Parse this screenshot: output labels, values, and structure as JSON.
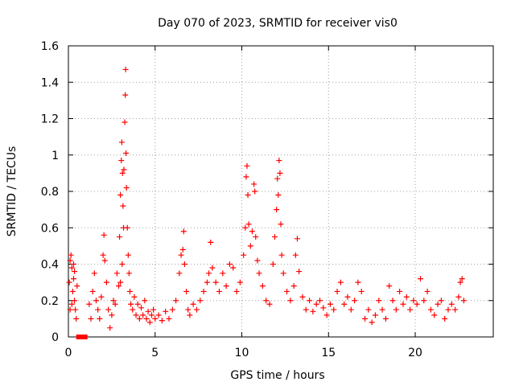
{
  "chart_data": {
    "type": "scatter",
    "title": "Day 070 of 2023, SRMTID for receiver vis0",
    "xlabel": "GPS time / hours",
    "ylabel": "SRMTID / TECUs",
    "xlim": [
      0,
      24.5
    ],
    "ylim": [
      0,
      1.6
    ],
    "xticks": [
      0,
      5,
      10,
      15,
      20
    ],
    "xtick_labels": [
      "0",
      "5",
      "10",
      "15",
      "20"
    ],
    "yticks": [
      0,
      0.2,
      0.4,
      0.6,
      0.8,
      1.0,
      1.2,
      1.4,
      1.6
    ],
    "ytick_labels": [
      "0",
      "0.2",
      "0.4",
      "0.6",
      "0.8",
      "1",
      "1.2",
      "1.4",
      "1.6"
    ],
    "grid": true,
    "marker": "plus",
    "color": "#ff0000",
    "gap_marker": {
      "x_start": 0.45,
      "x_end": 1.1,
      "y": 0.0
    },
    "series": [
      {
        "name": "SRMTID",
        "points": [
          [
            0.05,
            0.3
          ],
          [
            0.1,
            0.42
          ],
          [
            0.15,
            0.45
          ],
          [
            0.2,
            0.38
          ],
          [
            0.25,
            0.25
          ],
          [
            0.3,
            0.4
          ],
          [
            0.35,
            0.2
          ],
          [
            0.4,
            0.15
          ],
          [
            0.45,
            0.1
          ],
          [
            0.5,
            0.28
          ],
          [
            0.1,
            0.15
          ],
          [
            0.2,
            0.18
          ],
          [
            0.3,
            0.32
          ],
          [
            0.35,
            0.36
          ],
          [
            1.2,
            0.18
          ],
          [
            1.3,
            0.1
          ],
          [
            1.4,
            0.25
          ],
          [
            1.5,
            0.35
          ],
          [
            1.6,
            0.2
          ],
          [
            1.7,
            0.15
          ],
          [
            1.8,
            0.1
          ],
          [
            1.9,
            0.22
          ],
          [
            2.0,
            0.45
          ],
          [
            2.05,
            0.56
          ],
          [
            2.1,
            0.42
          ],
          [
            2.2,
            0.3
          ],
          [
            2.3,
            0.15
          ],
          [
            2.4,
            0.05
          ],
          [
            2.5,
            0.12
          ],
          [
            2.6,
            0.2
          ],
          [
            2.7,
            0.18
          ],
          [
            2.8,
            0.35
          ],
          [
            2.9,
            0.28
          ],
          [
            2.95,
            0.55
          ],
          [
            3.0,
            0.78
          ],
          [
            3.05,
            0.97
          ],
          [
            3.08,
            1.07
          ],
          [
            3.12,
            0.9
          ],
          [
            3.15,
            0.72
          ],
          [
            3.18,
            0.6
          ],
          [
            3.2,
            0.92
          ],
          [
            3.25,
            1.18
          ],
          [
            3.28,
            1.33
          ],
          [
            3.3,
            1.47
          ],
          [
            3.32,
            1.01
          ],
          [
            3.35,
            0.82
          ],
          [
            3.4,
            0.6
          ],
          [
            3.45,
            0.45
          ],
          [
            3.5,
            0.35
          ],
          [
            3.55,
            0.25
          ],
          [
            3.6,
            0.18
          ],
          [
            3.1,
            0.4
          ],
          [
            3.0,
            0.3
          ],
          [
            3.7,
            0.15
          ],
          [
            3.8,
            0.22
          ],
          [
            3.9,
            0.12
          ],
          [
            4.0,
            0.18
          ],
          [
            4.1,
            0.1
          ],
          [
            4.2,
            0.16
          ],
          [
            4.3,
            0.12
          ],
          [
            4.4,
            0.2
          ],
          [
            4.5,
            0.1
          ],
          [
            4.6,
            0.14
          ],
          [
            4.7,
            0.08
          ],
          [
            4.8,
            0.12
          ],
          [
            4.9,
            0.15
          ],
          [
            5.0,
            0.1
          ],
          [
            5.2,
            0.12
          ],
          [
            5.4,
            0.09
          ],
          [
            5.6,
            0.14
          ],
          [
            5.8,
            0.1
          ],
          [
            6.0,
            0.15
          ],
          [
            6.2,
            0.2
          ],
          [
            6.4,
            0.35
          ],
          [
            6.5,
            0.45
          ],
          [
            6.6,
            0.48
          ],
          [
            6.65,
            0.58
          ],
          [
            6.7,
            0.4
          ],
          [
            6.8,
            0.25
          ],
          [
            6.9,
            0.15
          ],
          [
            7.0,
            0.12
          ],
          [
            7.2,
            0.18
          ],
          [
            7.4,
            0.15
          ],
          [
            7.6,
            0.2
          ],
          [
            7.8,
            0.25
          ],
          [
            8.0,
            0.3
          ],
          [
            8.1,
            0.35
          ],
          [
            8.2,
            0.52
          ],
          [
            8.3,
            0.38
          ],
          [
            8.5,
            0.3
          ],
          [
            8.7,
            0.25
          ],
          [
            8.9,
            0.35
          ],
          [
            9.1,
            0.28
          ],
          [
            9.3,
            0.4
          ],
          [
            9.5,
            0.38
          ],
          [
            9.7,
            0.25
          ],
          [
            9.9,
            0.3
          ],
          [
            10.1,
            0.45
          ],
          [
            10.2,
            0.6
          ],
          [
            10.25,
            0.88
          ],
          [
            10.3,
            0.94
          ],
          [
            10.35,
            0.78
          ],
          [
            10.4,
            0.62
          ],
          [
            10.5,
            0.5
          ],
          [
            10.6,
            0.58
          ],
          [
            10.7,
            0.84
          ],
          [
            10.75,
            0.8
          ],
          [
            10.8,
            0.55
          ],
          [
            10.9,
            0.42
          ],
          [
            11.0,
            0.35
          ],
          [
            11.2,
            0.28
          ],
          [
            11.4,
            0.2
          ],
          [
            11.6,
            0.18
          ],
          [
            11.8,
            0.4
          ],
          [
            11.9,
            0.55
          ],
          [
            12.0,
            0.7
          ],
          [
            12.05,
            0.87
          ],
          [
            12.1,
            0.78
          ],
          [
            12.15,
            0.97
          ],
          [
            12.2,
            0.9
          ],
          [
            12.25,
            0.62
          ],
          [
            12.3,
            0.45
          ],
          [
            12.4,
            0.35
          ],
          [
            12.6,
            0.25
          ],
          [
            12.8,
            0.2
          ],
          [
            13.0,
            0.28
          ],
          [
            13.1,
            0.45
          ],
          [
            13.2,
            0.54
          ],
          [
            13.3,
            0.36
          ],
          [
            13.5,
            0.22
          ],
          [
            13.7,
            0.15
          ],
          [
            13.9,
            0.2
          ],
          [
            14.1,
            0.14
          ],
          [
            14.3,
            0.18
          ],
          [
            14.5,
            0.2
          ],
          [
            14.7,
            0.16
          ],
          [
            14.9,
            0.12
          ],
          [
            15.1,
            0.18
          ],
          [
            15.3,
            0.15
          ],
          [
            15.5,
            0.25
          ],
          [
            15.7,
            0.3
          ],
          [
            15.9,
            0.18
          ],
          [
            16.1,
            0.22
          ],
          [
            16.3,
            0.15
          ],
          [
            16.5,
            0.2
          ],
          [
            16.7,
            0.3
          ],
          [
            16.9,
            0.25
          ],
          [
            17.1,
            0.1
          ],
          [
            17.3,
            0.15
          ],
          [
            17.5,
            0.08
          ],
          [
            17.7,
            0.12
          ],
          [
            17.9,
            0.2
          ],
          [
            18.1,
            0.15
          ],
          [
            18.3,
            0.1
          ],
          [
            18.5,
            0.28
          ],
          [
            18.7,
            0.2
          ],
          [
            18.9,
            0.15
          ],
          [
            19.1,
            0.25
          ],
          [
            19.3,
            0.18
          ],
          [
            19.5,
            0.22
          ],
          [
            19.7,
            0.15
          ],
          [
            19.9,
            0.2
          ],
          [
            20.1,
            0.18
          ],
          [
            20.3,
            0.32
          ],
          [
            20.5,
            0.2
          ],
          [
            20.7,
            0.25
          ],
          [
            20.9,
            0.15
          ],
          [
            21.1,
            0.12
          ],
          [
            21.3,
            0.18
          ],
          [
            21.5,
            0.2
          ],
          [
            21.7,
            0.1
          ],
          [
            21.9,
            0.15
          ],
          [
            22.1,
            0.18
          ],
          [
            22.3,
            0.15
          ],
          [
            22.5,
            0.22
          ],
          [
            22.6,
            0.3
          ],
          [
            22.7,
            0.32
          ],
          [
            22.8,
            0.2
          ]
        ]
      }
    ]
  }
}
